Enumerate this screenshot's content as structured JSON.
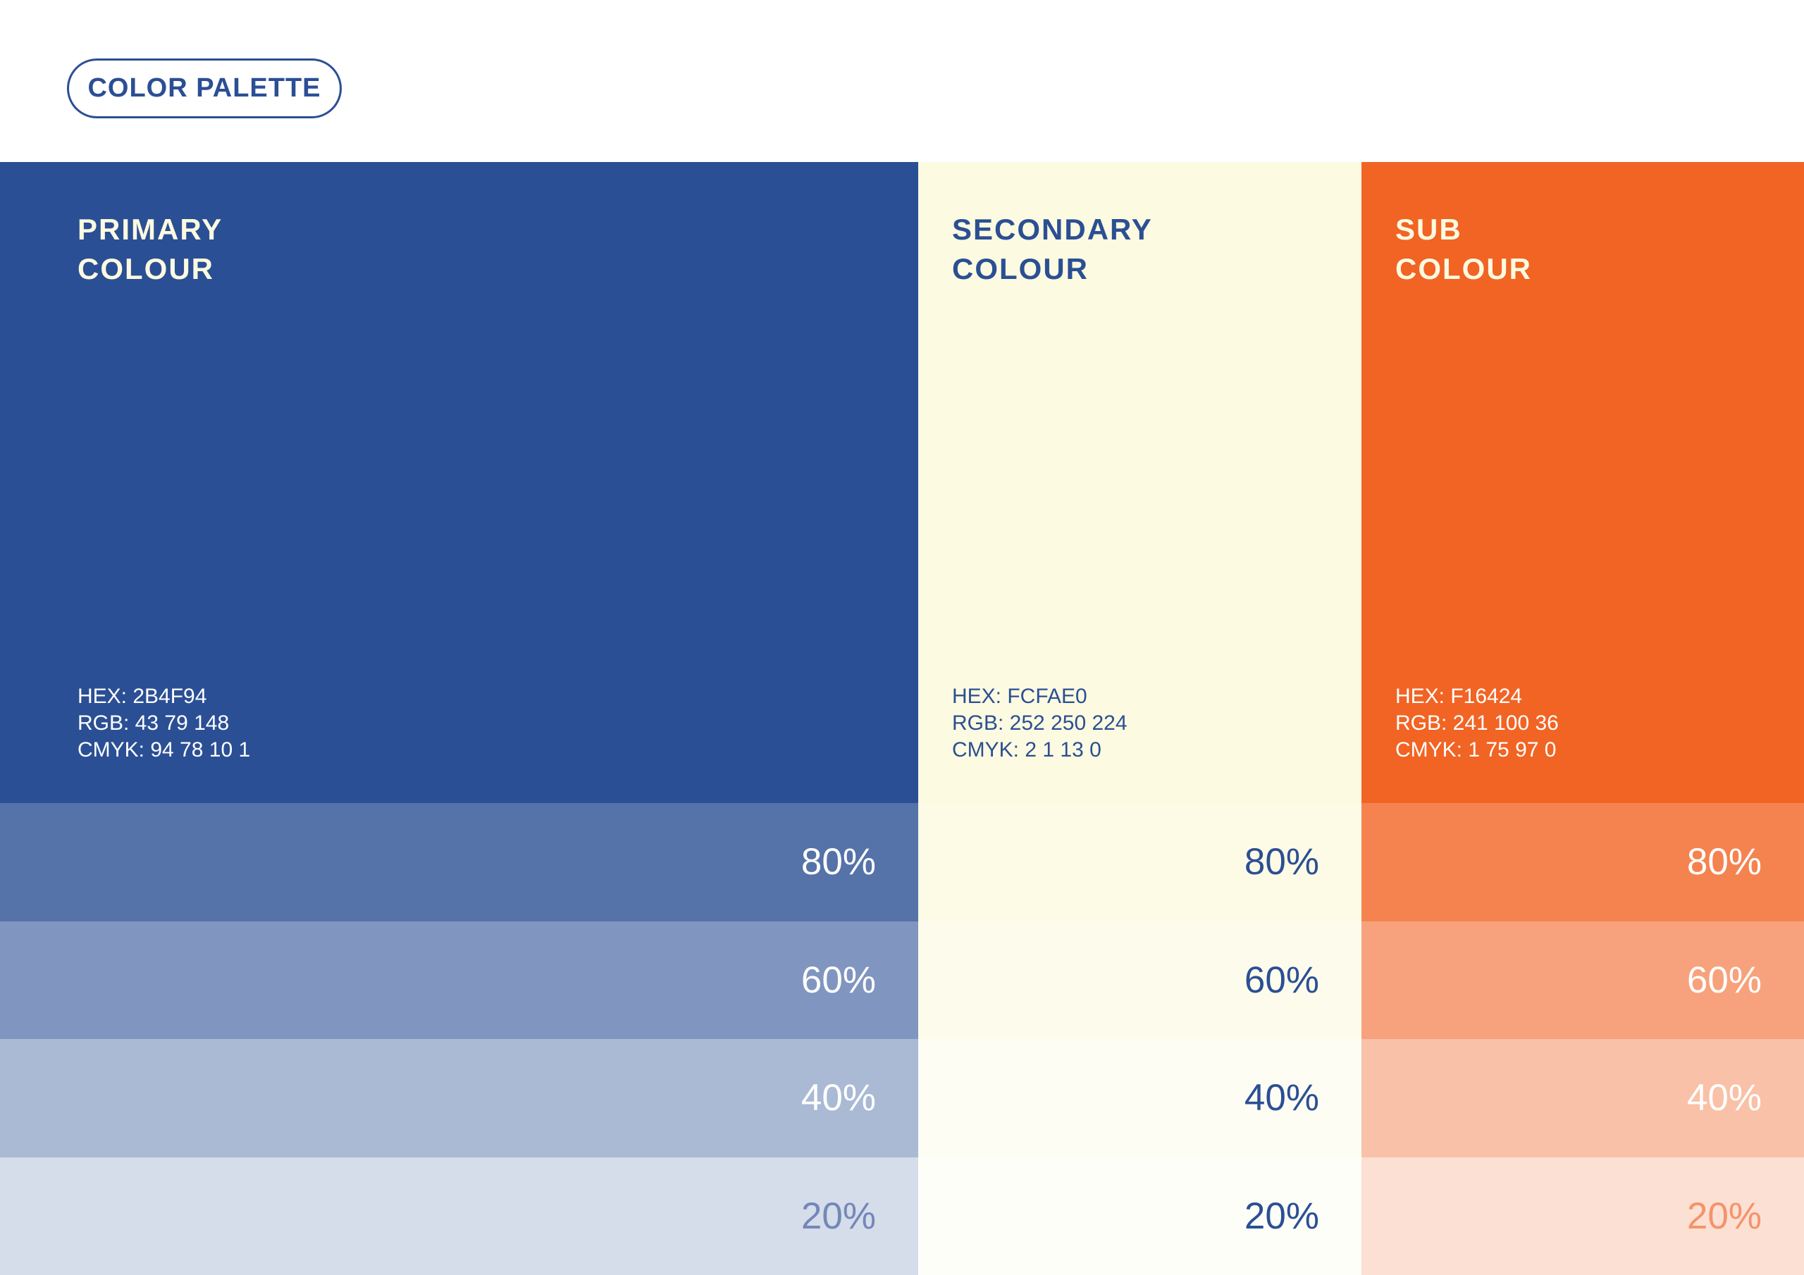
{
  "badge": {
    "label": "COLOR PALETTE",
    "border_color": "#2B4F94",
    "text_color": "#2B4F94"
  },
  "brand_colors": {
    "blue": "#2B4F94",
    "cream": "#FCFAE0",
    "orange": "#F16424",
    "white": "#FFFFFF"
  },
  "columns": [
    {
      "id": "primary",
      "title": "PRIMARY\nCOLOUR",
      "hex": "HEX: 2B4F94",
      "rgb": "RGB: 43 79 148",
      "cmyk": "CMYK: 94 78 10 1",
      "base_color": "#2B4F94",
      "title_color": "#FCFAE0",
      "info_color": "#FFFFFF",
      "tints": [
        {
          "label": "80%",
          "bg": "#5572A9",
          "label_color": "#FFFFFF"
        },
        {
          "label": "60%",
          "bg": "#8095BF",
          "label_color": "#FFFFFF"
        },
        {
          "label": "40%",
          "bg": "#AAB9D4",
          "label_color": "#FFFFFF"
        },
        {
          "label": "20%",
          "bg": "#D5DCEA",
          "label_color": "#7487B7"
        }
      ]
    },
    {
      "id": "secondary",
      "title": "SECONDARY\nCOLOUR",
      "hex": "HEX: FCFAE0",
      "rgb": "RGB: 252 250 224",
      "cmyk": "CMYK: 2 1 13 0",
      "base_color": "#FCFAE0",
      "title_color": "#2B4F94",
      "info_color": "#2B4F94",
      "tints": [
        {
          "label": "80%",
          "bg": "#FDFBE6",
          "label_color": "#2B4F94"
        },
        {
          "label": "60%",
          "bg": "#FDFCEC",
          "label_color": "#2B4F94"
        },
        {
          "label": "40%",
          "bg": "#FEFDF3",
          "label_color": "#2B4F94"
        },
        {
          "label": "20%",
          "bg": "#FEFEF9",
          "label_color": "#2B4F94"
        }
      ]
    },
    {
      "id": "sub",
      "title": "SUB\nCOLOUR",
      "hex": "HEX: F16424",
      "rgb": "RGB: 241 100 36",
      "cmyk": "CMYK: 1 75 97 0",
      "base_color": "#F16424",
      "title_color": "#FCFAE0",
      "info_color": "#FFFFFF",
      "tints": [
        {
          "label": "80%",
          "bg": "#F48350",
          "label_color": "#FFFFFF"
        },
        {
          "label": "60%",
          "bg": "#F7A27C",
          "label_color": "#FFFFFF"
        },
        {
          "label": "40%",
          "bg": "#F9C1A7",
          "label_color": "#FFFFFF"
        },
        {
          "label": "20%",
          "bg": "#FCE0D3",
          "label_color": "#F4936B"
        }
      ]
    }
  ]
}
